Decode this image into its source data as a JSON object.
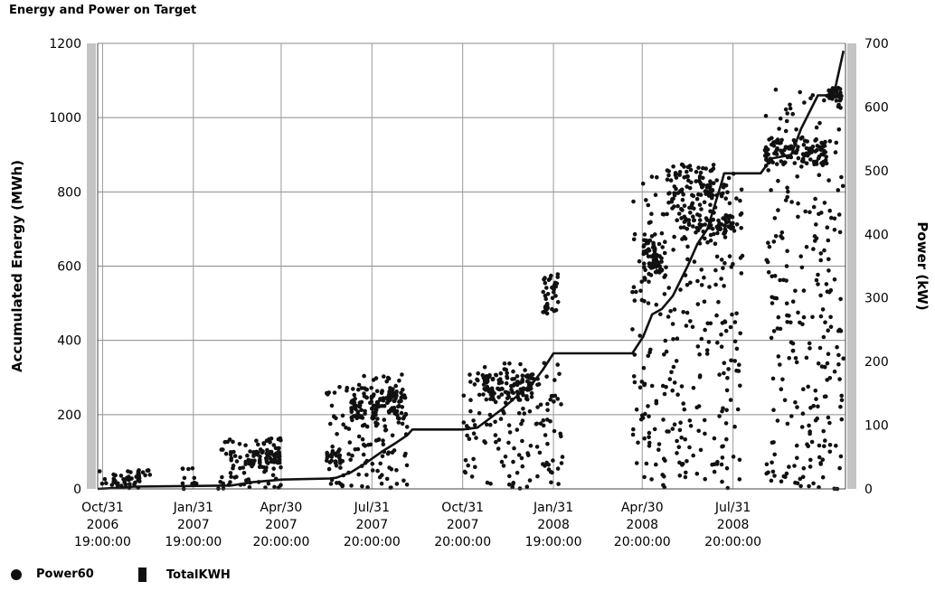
{
  "chart_data": {
    "type": "line",
    "title": "Energy and Power on Target",
    "ylabel": "Accumulated Energy (MWh)",
    "y2label": "Power (kW)",
    "ylim": [
      0,
      1200
    ],
    "y2lim": [
      0,
      700
    ],
    "yticks": [
      "0",
      "200",
      "400",
      "600",
      "800",
      "1000",
      "1200"
    ],
    "y2ticks": [
      "0",
      "100",
      "200",
      "300",
      "400",
      "500",
      "600",
      "700"
    ],
    "xlim": [
      "2006-10-26",
      "2008-11-22"
    ],
    "xticks": [
      {
        "date": "2006-10-31",
        "lines": [
          "Oct/31",
          "2006",
          "19:00:00"
        ]
      },
      {
        "date": "2007-01-31",
        "lines": [
          "Jan/31",
          "2007",
          "19:00:00"
        ]
      },
      {
        "date": "2007-04-30",
        "lines": [
          "Apr/30",
          "2007",
          "20:00:00"
        ]
      },
      {
        "date": "2007-07-31",
        "lines": [
          "Jul/31",
          "2007",
          "20:00:00"
        ]
      },
      {
        "date": "2007-10-31",
        "lines": [
          "Oct/31",
          "2007",
          "20:00:00"
        ]
      },
      {
        "date": "2008-01-31",
        "lines": [
          "Jan/31",
          "2008",
          "19:00:00"
        ]
      },
      {
        "date": "2008-04-30",
        "lines": [
          "Apr/30",
          "2008",
          "20:00:00"
        ]
      },
      {
        "date": "2008-07-31",
        "lines": [
          "Jul/31",
          "2008",
          "20:00:00"
        ]
      }
    ],
    "grid": true,
    "legend_position": "bottom-left",
    "series": [
      {
        "name": "TotalKWH",
        "axis": "left",
        "style": "line",
        "color": "#111111",
        "points": [
          [
            "2006-10-26",
            0
          ],
          [
            "2006-11-15",
            3
          ],
          [
            "2006-12-01",
            6
          ],
          [
            "2007-03-10",
            9
          ],
          [
            "2007-04-01",
            18
          ],
          [
            "2007-05-01",
            25
          ],
          [
            "2007-06-18",
            28
          ],
          [
            "2007-06-25",
            30
          ],
          [
            "2007-07-10",
            45
          ],
          [
            "2007-07-25",
            70
          ],
          [
            "2007-08-10",
            100
          ],
          [
            "2007-08-25",
            125
          ],
          [
            "2007-09-05",
            145
          ],
          [
            "2007-09-10",
            160
          ],
          [
            "2007-10-31",
            160
          ],
          [
            "2007-11-15",
            165
          ],
          [
            "2007-11-25",
            185
          ],
          [
            "2007-12-10",
            215
          ],
          [
            "2007-12-25",
            250
          ],
          [
            "2008-01-10",
            285
          ],
          [
            "2008-01-20",
            320
          ],
          [
            "2008-01-31",
            365
          ],
          [
            "2008-04-20",
            365
          ],
          [
            "2008-05-01",
            410
          ],
          [
            "2008-05-10",
            470
          ],
          [
            "2008-05-20",
            485
          ],
          [
            "2008-05-31",
            520
          ],
          [
            "2008-06-15",
            600
          ],
          [
            "2008-06-25",
            660
          ],
          [
            "2008-07-05",
            700
          ],
          [
            "2008-07-12",
            760
          ],
          [
            "2008-07-20",
            830
          ],
          [
            "2008-07-22",
            850
          ],
          [
            "2008-08-28",
            850
          ],
          [
            "2008-09-08",
            890
          ],
          [
            "2008-09-28",
            900
          ],
          [
            "2008-10-08",
            970
          ],
          [
            "2008-10-25",
            1060
          ],
          [
            "2008-11-10",
            1060
          ],
          [
            "2008-11-20",
            1180
          ]
        ]
      },
      {
        "name": "Power60",
        "axis": "right",
        "style": "scatter",
        "color": "#111111",
        "clusters": [
          {
            "start": "2006-10-28",
            "end": "2006-12-10",
            "ylo": 0,
            "yhi": 30,
            "n": 40
          },
          {
            "start": "2006-12-05",
            "end": "2006-12-18",
            "ylo": 20,
            "yhi": 30,
            "n": 10
          },
          {
            "start": "2007-01-20",
            "end": "2007-02-05",
            "ylo": 0,
            "yhi": 35,
            "n": 12
          },
          {
            "start": "2007-02-25",
            "end": "2007-04-30",
            "ylo": 0,
            "yhi": 80,
            "n": 90
          },
          {
            "start": "2007-03-25",
            "end": "2007-04-30",
            "ylo": 40,
            "yhi": 60,
            "n": 40
          },
          {
            "start": "2007-06-15",
            "end": "2007-09-05",
            "ylo": 0,
            "yhi": 180,
            "n": 150
          },
          {
            "start": "2007-07-10",
            "end": "2007-09-05",
            "ylo": 110,
            "yhi": 160,
            "n": 110
          },
          {
            "start": "2007-06-15",
            "end": "2007-06-30",
            "ylo": 40,
            "yhi": 60,
            "n": 20
          },
          {
            "start": "2007-11-01",
            "end": "2008-02-10",
            "ylo": 0,
            "yhi": 200,
            "n": 150
          },
          {
            "start": "2007-11-20",
            "end": "2008-01-10",
            "ylo": 140,
            "yhi": 180,
            "n": 90
          },
          {
            "start": "2008-01-20",
            "end": "2008-02-05",
            "ylo": 270,
            "yhi": 340,
            "n": 40
          },
          {
            "start": "2008-04-20",
            "end": "2008-08-10",
            "ylo": 0,
            "yhi": 510,
            "n": 320
          },
          {
            "start": "2008-05-01",
            "end": "2008-05-20",
            "ylo": 330,
            "yhi": 400,
            "n": 60
          },
          {
            "start": "2008-05-25",
            "end": "2008-07-15",
            "ylo": 400,
            "yhi": 510,
            "n": 110
          },
          {
            "start": "2008-07-15",
            "end": "2008-08-05",
            "ylo": 400,
            "yhi": 430,
            "n": 30
          },
          {
            "start": "2008-09-01",
            "end": "2008-11-20",
            "ylo": 0,
            "yhi": 630,
            "n": 260
          },
          {
            "start": "2008-09-01",
            "end": "2008-11-05",
            "ylo": 510,
            "yhi": 550,
            "n": 100
          },
          {
            "start": "2008-11-05",
            "end": "2008-11-18",
            "ylo": 610,
            "yhi": 630,
            "n": 30
          }
        ]
      }
    ]
  },
  "legend": {
    "power_label": "Power60",
    "total_label": "TotalKWH"
  }
}
